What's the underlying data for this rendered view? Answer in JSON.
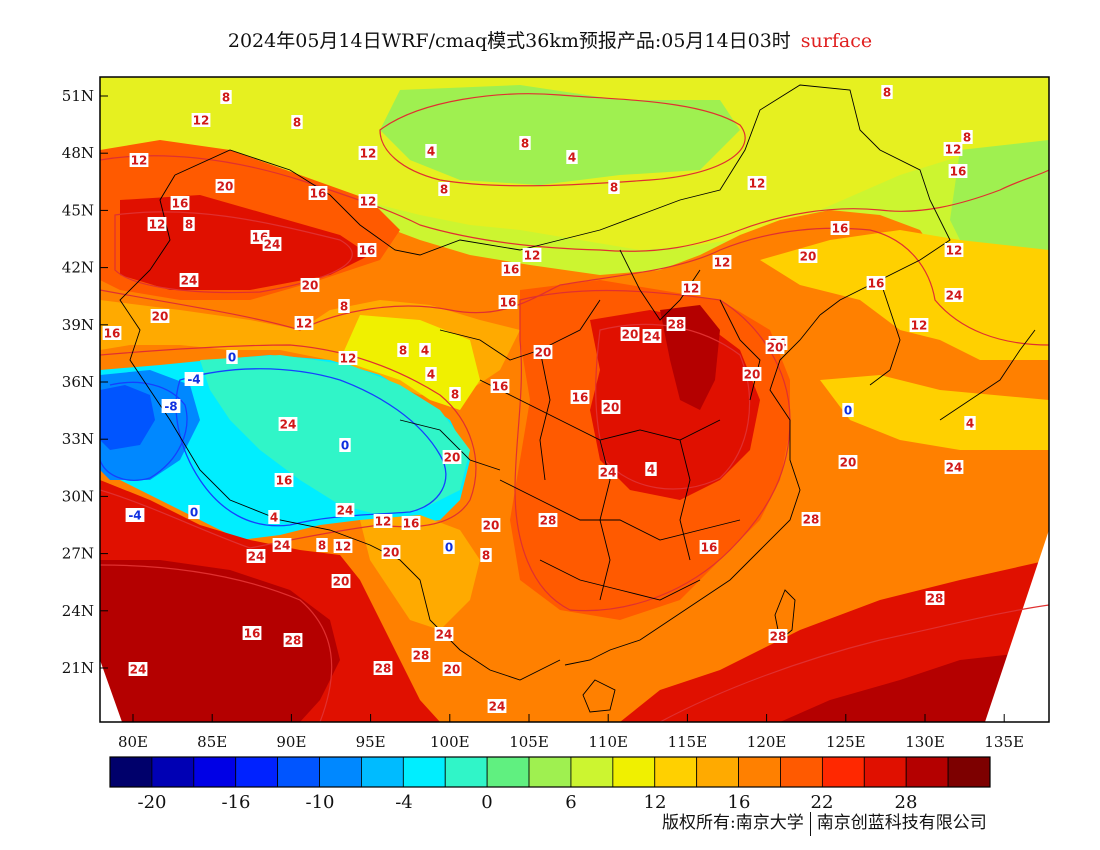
{
  "title": {
    "main": "2024年05月14日WRF/cmaq模式36km预报产品:05月14日03时",
    "sub": "surface"
  },
  "axes": {
    "lat_labels": [
      "51N",
      "48N",
      "45N",
      "42N",
      "39N",
      "36N",
      "33N",
      "30N",
      "27N",
      "24N",
      "21N"
    ],
    "lon_labels": [
      "80E",
      "85E",
      "90E",
      "95E",
      "100E",
      "105E",
      "110E",
      "115E",
      "120E",
      "125E",
      "130E",
      "135E"
    ]
  },
  "colorbar": {
    "colors": [
      "#00006b",
      "#0000b4",
      "#0000e6",
      "#0022ff",
      "#0055ff",
      "#0088ff",
      "#00bbff",
      "#00eeff",
      "#30f5c8",
      "#60f080",
      "#9ff050",
      "#ccf530",
      "#f0f000",
      "#ffd000",
      "#ffaa00",
      "#ff8000",
      "#ff5a00",
      "#ff2800",
      "#e01000",
      "#b40000",
      "#7d0000"
    ],
    "labels": [
      "-20",
      "-16",
      "-10",
      "-4",
      "0",
      "6",
      "12",
      "16",
      "22",
      "28"
    ]
  },
  "contour_labels": [
    {
      "v": "8"
    },
    {
      "v": "12"
    },
    {
      "v": "8"
    },
    {
      "v": "12"
    },
    {
      "v": "12"
    },
    {
      "v": "4"
    },
    {
      "v": "8"
    },
    {
      "v": "4"
    },
    {
      "v": "8"
    },
    {
      "v": "8"
    },
    {
      "v": "8"
    },
    {
      "v": "12"
    },
    {
      "v": "16"
    },
    {
      "v": "8"
    },
    {
      "v": "20"
    },
    {
      "v": "16"
    },
    {
      "v": "16"
    },
    {
      "v": "12"
    },
    {
      "v": "8"
    },
    {
      "v": "12"
    },
    {
      "v": "12"
    },
    {
      "v": "16"
    },
    {
      "v": "16"
    },
    {
      "v": "12"
    },
    {
      "v": "16"
    },
    {
      "v": "16"
    },
    {
      "v": "24"
    },
    {
      "v": "20"
    },
    {
      "v": "24"
    },
    {
      "v": "16"
    },
    {
      "v": "12"
    },
    {
      "v": "12"
    },
    {
      "v": "20"
    },
    {
      "v": "12"
    },
    {
      "v": "16"
    },
    {
      "v": "8"
    },
    {
      "v": "12"
    },
    {
      "v": "20"
    },
    {
      "v": "24"
    },
    {
      "v": "12"
    },
    {
      "v": "16"
    },
    {
      "v": "12"
    },
    {
      "v": "0"
    },
    {
      "v": "8"
    },
    {
      "v": "4"
    },
    {
      "v": "-4"
    },
    {
      "v": "4"
    },
    {
      "v": "-8"
    },
    {
      "v": "8"
    },
    {
      "v": "16"
    },
    {
      "v": "20"
    },
    {
      "v": "20"
    },
    {
      "v": "28"
    },
    {
      "v": "24"
    },
    {
      "v": "24"
    },
    {
      "v": "20"
    },
    {
      "v": "24"
    },
    {
      "v": "0"
    },
    {
      "v": "0"
    },
    {
      "v": "16"
    },
    {
      "v": "4"
    },
    {
      "v": "16"
    },
    {
      "v": "20"
    },
    {
      "v": "24"
    },
    {
      "v": "20"
    },
    {
      "v": "4"
    },
    {
      "v": "0"
    },
    {
      "v": "-4"
    },
    {
      "v": "28"
    },
    {
      "v": "20"
    },
    {
      "v": "12"
    },
    {
      "v": "16"
    },
    {
      "v": "4"
    },
    {
      "v": "24"
    },
    {
      "v": "0"
    },
    {
      "v": "8"
    },
    {
      "v": "12"
    },
    {
      "v": "20"
    },
    {
      "v": "24"
    },
    {
      "v": "8"
    },
    {
      "v": "16"
    },
    {
      "v": "20"
    },
    {
      "v": "24"
    },
    {
      "v": "20"
    },
    {
      "v": "16"
    },
    {
      "v": "28"
    },
    {
      "v": "28"
    },
    {
      "v": "20"
    },
    {
      "v": "24"
    },
    {
      "v": "24"
    },
    {
      "v": "28"
    },
    {
      "v": "28"
    },
    {
      "v": "24"
    },
    {
      "v": "20"
    },
    {
      "v": "24"
    },
    {
      "v": "28"
    },
    {
      "v": "28"
    }
  ],
  "credit": {
    "left": "版权所有:南京大学",
    "right": "南京创蓝科技有限公司"
  }
}
